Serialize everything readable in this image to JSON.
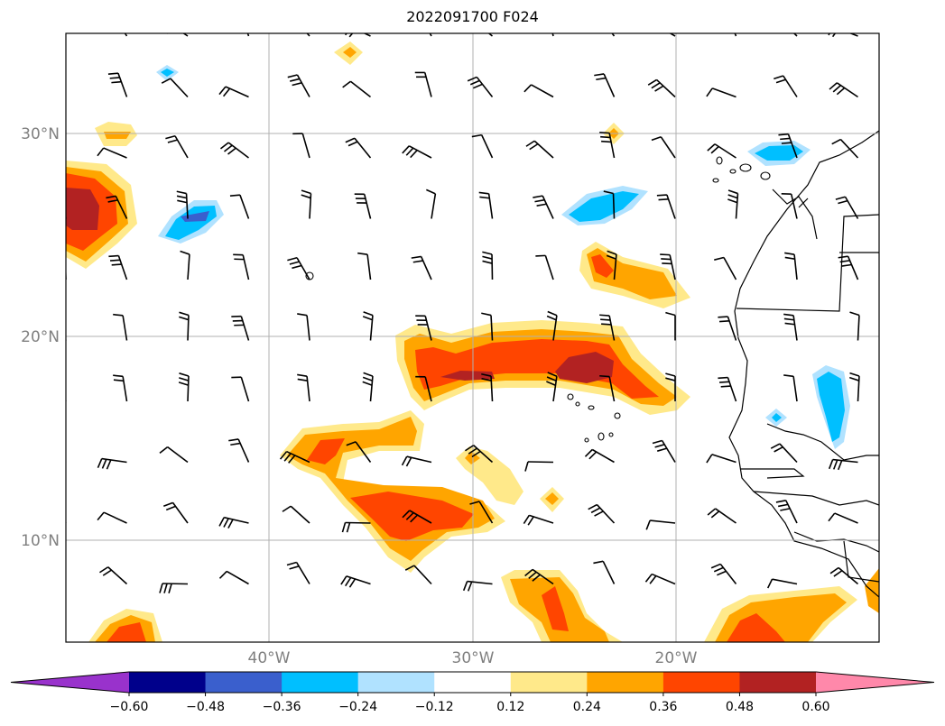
{
  "title": "2022091700 F024",
  "lat_labels": [
    "30°N",
    "20°N",
    "10°N"
  ],
  "lon_labels": [
    "40°W",
    "30°W",
    "20°W"
  ],
  "colorbar": {
    "ticks": [
      "−0.60",
      "−0.48",
      "−0.36",
      "−0.24",
      "−0.12",
      "0.12",
      "0.24",
      "0.36",
      "0.48",
      "0.60"
    ],
    "colors": [
      "#9932cc",
      "#00008b",
      "#3a5fcd",
      "#00bfff",
      "#b0e2ff",
      "#ffffff",
      "#ffe98a",
      "#ffa500",
      "#ff4500",
      "#b22222",
      "#ff88aa"
    ]
  }
}
